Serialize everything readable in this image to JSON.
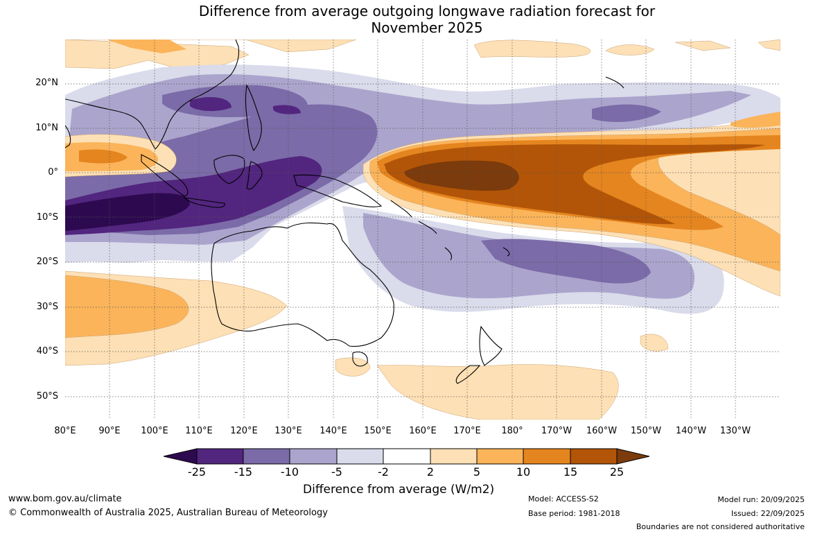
{
  "title": {
    "line1": "Difference from average outgoing longwave radiation forecast for",
    "line2": "November 2025"
  },
  "map": {
    "lat_labels": [
      "20°N",
      "10°N",
      "0°",
      "10°S",
      "20°S",
      "30°S",
      "40°S",
      "50°S"
    ],
    "lon_labels": [
      "80°E",
      "90°E",
      "100°E",
      "110°E",
      "120°E",
      "130°E",
      "140°E",
      "150°E",
      "160°E",
      "170°E",
      "180°",
      "170°W",
      "160°W",
      "150°W",
      "140°W",
      "130°W"
    ],
    "colors": {
      "neg25": "#2d0a4f",
      "neg15": "#52257f",
      "neg10": "#7b6ba8",
      "neg5": "#aba5cd",
      "neg2": "#dadbeb",
      "neutral": "#ffffff",
      "pos2": "#fde0b5",
      "pos5": "#fbb45a",
      "pos10": "#e5851f",
      "pos15": "#b25508",
      "pos25": "#7b3b0c"
    }
  },
  "colorbar": {
    "ticks": [
      "-25",
      "-15",
      "-10",
      "-5",
      "-2",
      "2",
      "5",
      "10",
      "15",
      "25"
    ],
    "label": "Difference from average (W/m2)"
  },
  "footer": {
    "website": "www.bom.gov.au/climate",
    "copyright": "© Commonwealth of Australia 2025, Australian Bureau of Meteorology",
    "model": "Model: ACCESS-S2",
    "base_period": "Base period: 1981-2018",
    "model_run": "Model run: 20/09/2025",
    "issued": "Issued: 22/09/2025",
    "disclaimer": "Boundaries are not considered authoritative"
  }
}
